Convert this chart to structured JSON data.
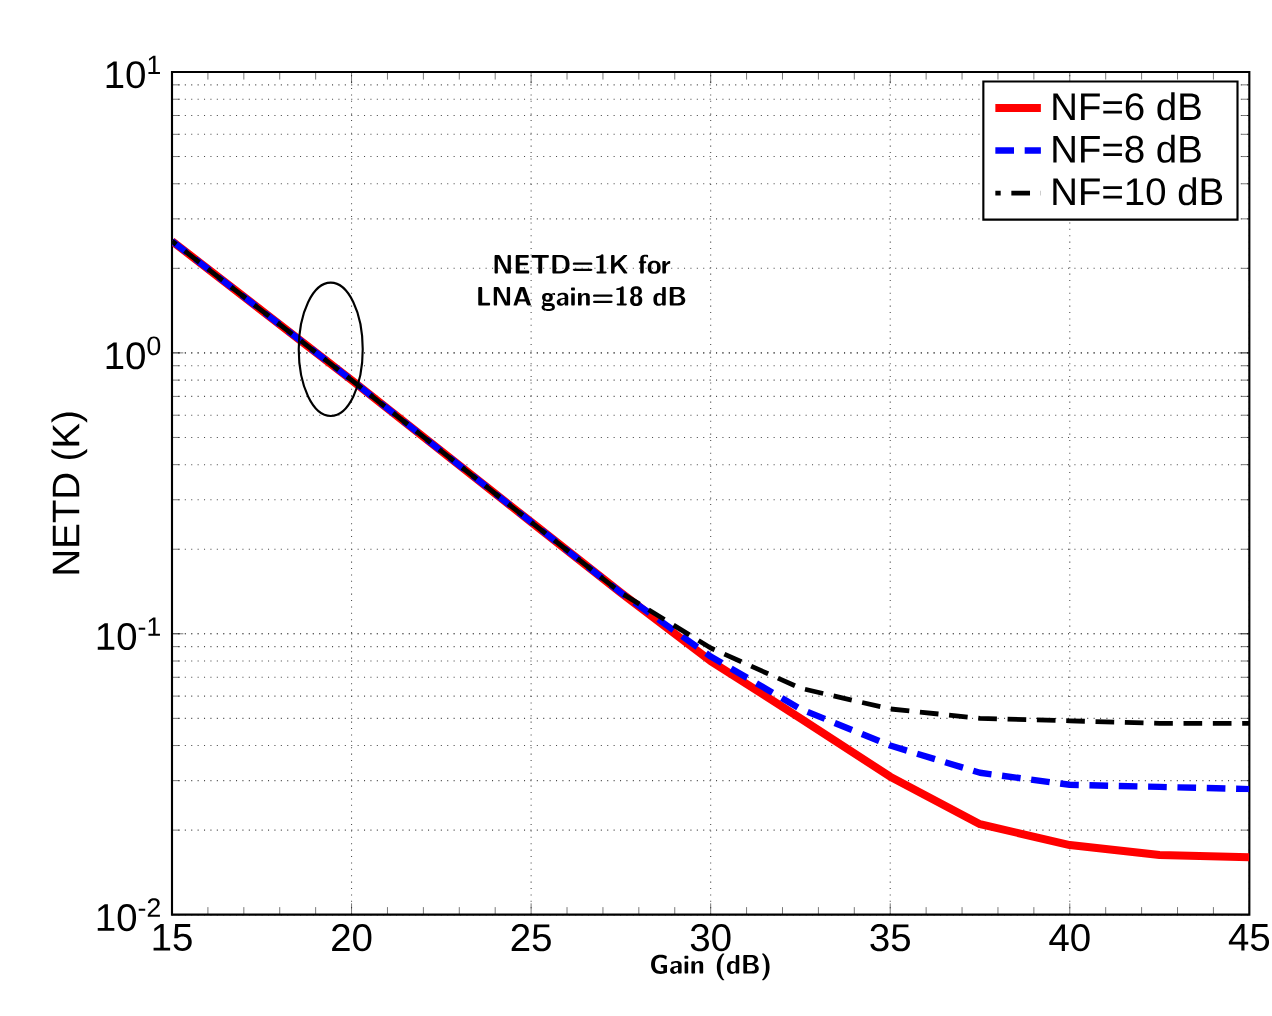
{
  "chart_data": {
    "type": "line",
    "xlabel": "Gain (dB)",
    "ylabel": "NETD (K)",
    "log": "y",
    "xlim": [
      15,
      45
    ],
    "xticks": [
      15,
      20,
      25,
      30,
      35,
      40,
      45
    ],
    "ylim": [
      0.01,
      10
    ],
    "yticks": [
      {
        "value": 0.01,
        "label": "10$^{-2}$"
      },
      {
        "value": 0.1,
        "label": "10$^{-1}$"
      },
      {
        "value": 1,
        "label": "10$^{0}$"
      },
      {
        "value": 10,
        "label": "10$^{1}$"
      }
    ],
    "grid": true,
    "legend": "top right",
    "x": [
      15,
      20,
      25,
      27.5,
      30,
      32.5,
      35,
      37.5,
      40,
      42.5,
      45
    ],
    "series": [
      {
        "name": "NF=6 dB",
        "color": "#ff0000",
        "line_style": "solid",
        "values": [
          2.5,
          0.8,
          0.25,
          0.14,
          0.08,
          0.05,
          0.031,
          0.021,
          0.0177,
          0.0163,
          0.016
        ]
      },
      {
        "name": "NF=8 dB",
        "color": "#0000ff",
        "line_style": "dashed",
        "values": [
          2.5,
          0.8,
          0.25,
          0.14,
          0.083,
          0.054,
          0.04,
          0.032,
          0.029,
          0.0285,
          0.028
        ]
      },
      {
        "name": "NF=10 dB",
        "color": "#000000",
        "line_style": "dashed",
        "values": [
          2.5,
          0.8,
          0.25,
          0.14,
          0.089,
          0.064,
          0.054,
          0.05,
          0.049,
          0.048,
          0.048
        ]
      }
    ],
    "annotations": [
      "NETD=1K for LNA gain=18 dB"
    ]
  }
}
